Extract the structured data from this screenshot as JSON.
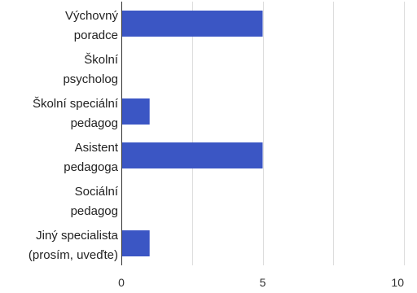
{
  "chart_data": {
    "type": "bar",
    "orientation": "horizontal",
    "categories": [
      [
        "Výchovný",
        "poradce"
      ],
      [
        "Školní",
        "psycholog"
      ],
      [
        "Školní speciální",
        "pedagog"
      ],
      [
        "Asistent",
        "pedagoga"
      ],
      [
        "Sociální",
        "pedagog"
      ],
      [
        "Jiný specialista",
        "(prosím, uveďte)"
      ]
    ],
    "values": [
      5,
      0,
      1,
      5,
      0,
      1
    ],
    "xlim": [
      0,
      10
    ],
    "xticks": [
      0,
      5,
      10
    ],
    "grid": true,
    "bar_color": "#3b56c4",
    "title": "",
    "xlabel": "",
    "ylabel": ""
  }
}
